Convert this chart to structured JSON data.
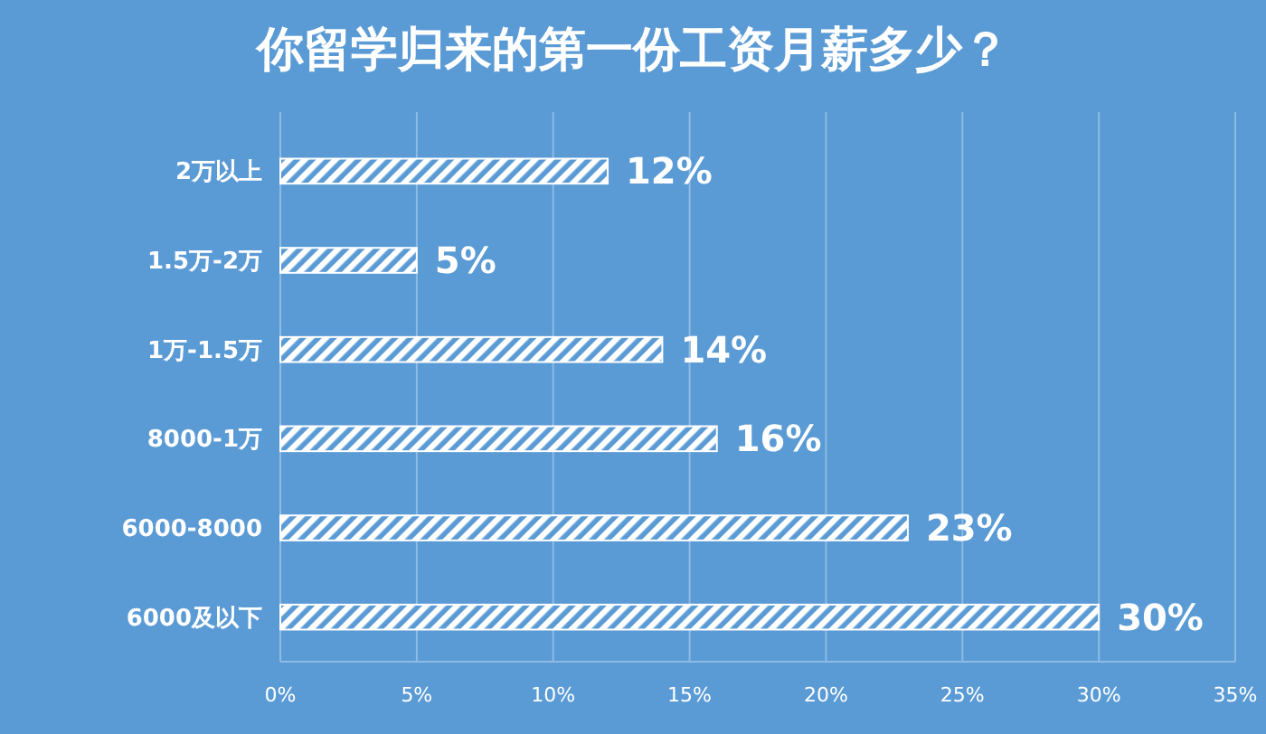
{
  "chart_data": {
    "type": "bar",
    "orientation": "horizontal",
    "title": "你留学归来的第一份工资月薪多少？",
    "categories": [
      "2万以上",
      "1.5万-2万",
      "1万-1.5万",
      "8000-1万",
      "6000-8000",
      "6000及以下"
    ],
    "values": [
      12,
      5,
      14,
      16,
      23,
      30
    ],
    "value_labels": [
      "12%",
      "5%",
      "14%",
      "16%",
      "23%",
      "30%"
    ],
    "color": "#ffffff",
    "xlim": [
      0,
      35
    ],
    "xticks": [
      {
        "value": 0,
        "label": "0%"
      },
      {
        "value": 5,
        "label": "5%"
      },
      {
        "value": 10,
        "label": "10%"
      },
      {
        "value": 15,
        "label": "15%"
      },
      {
        "value": 20,
        "label": "20%"
      },
      {
        "value": 25,
        "label": "25%"
      },
      {
        "value": 30,
        "label": "30%"
      },
      {
        "value": 35,
        "label": "35%"
      }
    ],
    "grid": "x"
  }
}
